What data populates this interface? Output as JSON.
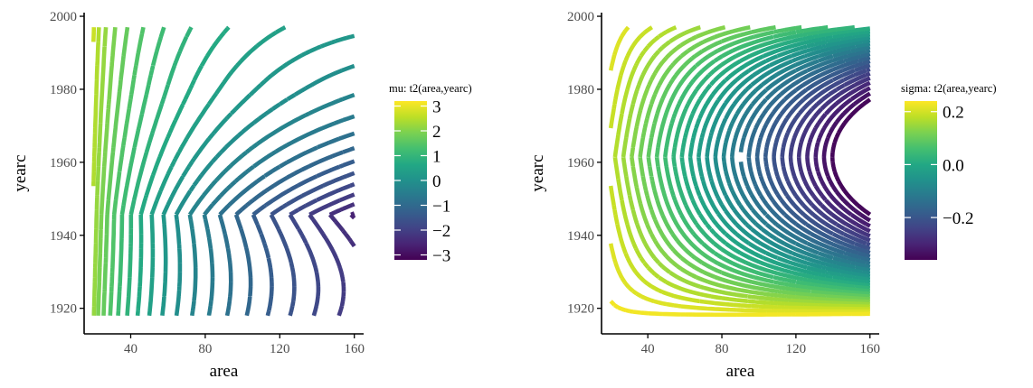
{
  "chart_data": [
    {
      "type": "contour",
      "xlabel": "area",
      "ylabel": "yearc",
      "xlim": [
        15,
        165
      ],
      "ylim": [
        1913,
        2001
      ],
      "x_ticks": [
        40,
        80,
        120,
        160
      ],
      "y_ticks": [
        1920,
        1940,
        1960,
        1980,
        2000
      ],
      "x_tick_labels": [
        "40",
        "80",
        "120",
        "160"
      ],
      "y_tick_labels": [
        "1920",
        "1940",
        "1960",
        "1980",
        "2000"
      ],
      "data_x_range": [
        20,
        160
      ],
      "data_y_range": [
        1918,
        1997
      ],
      "grid": false,
      "legend": {
        "title": "mu: t2(area,yearc)",
        "placement": "right",
        "range": [
          -3.2,
          3.2
        ],
        "ticks": [
          3,
          2,
          1,
          0,
          -1,
          -2,
          -3
        ],
        "tick_labels": [
          "3",
          "2",
          "1",
          "0",
          "−1",
          "−2",
          "−3"
        ],
        "colormap": "viridis"
      },
      "level_step": 0.25
    },
    {
      "type": "contour",
      "xlabel": "area",
      "ylabel": "yearc",
      "xlim": [
        15,
        165
      ],
      "ylim": [
        1913,
        2001
      ],
      "x_ticks": [
        40,
        80,
        120,
        160
      ],
      "y_ticks": [
        1920,
        1940,
        1960,
        1980,
        2000
      ],
      "x_tick_labels": [
        "40",
        "80",
        "120",
        "160"
      ],
      "y_tick_labels": [
        "1920",
        "1940",
        "1960",
        "1980",
        "2000"
      ],
      "data_x_range": [
        20,
        160
      ],
      "data_y_range": [
        1918,
        1997
      ],
      "grid": false,
      "legend": {
        "title": "sigma: t2(area,yearc)",
        "placement": "right",
        "range": [
          -0.36,
          0.24
        ],
        "ticks": [
          0.2,
          0.0,
          -0.2
        ],
        "tick_labels": [
          "0.2",
          "0.0",
          "−0.2"
        ],
        "colormap": "viridis"
      },
      "level_step": 0.02
    }
  ]
}
